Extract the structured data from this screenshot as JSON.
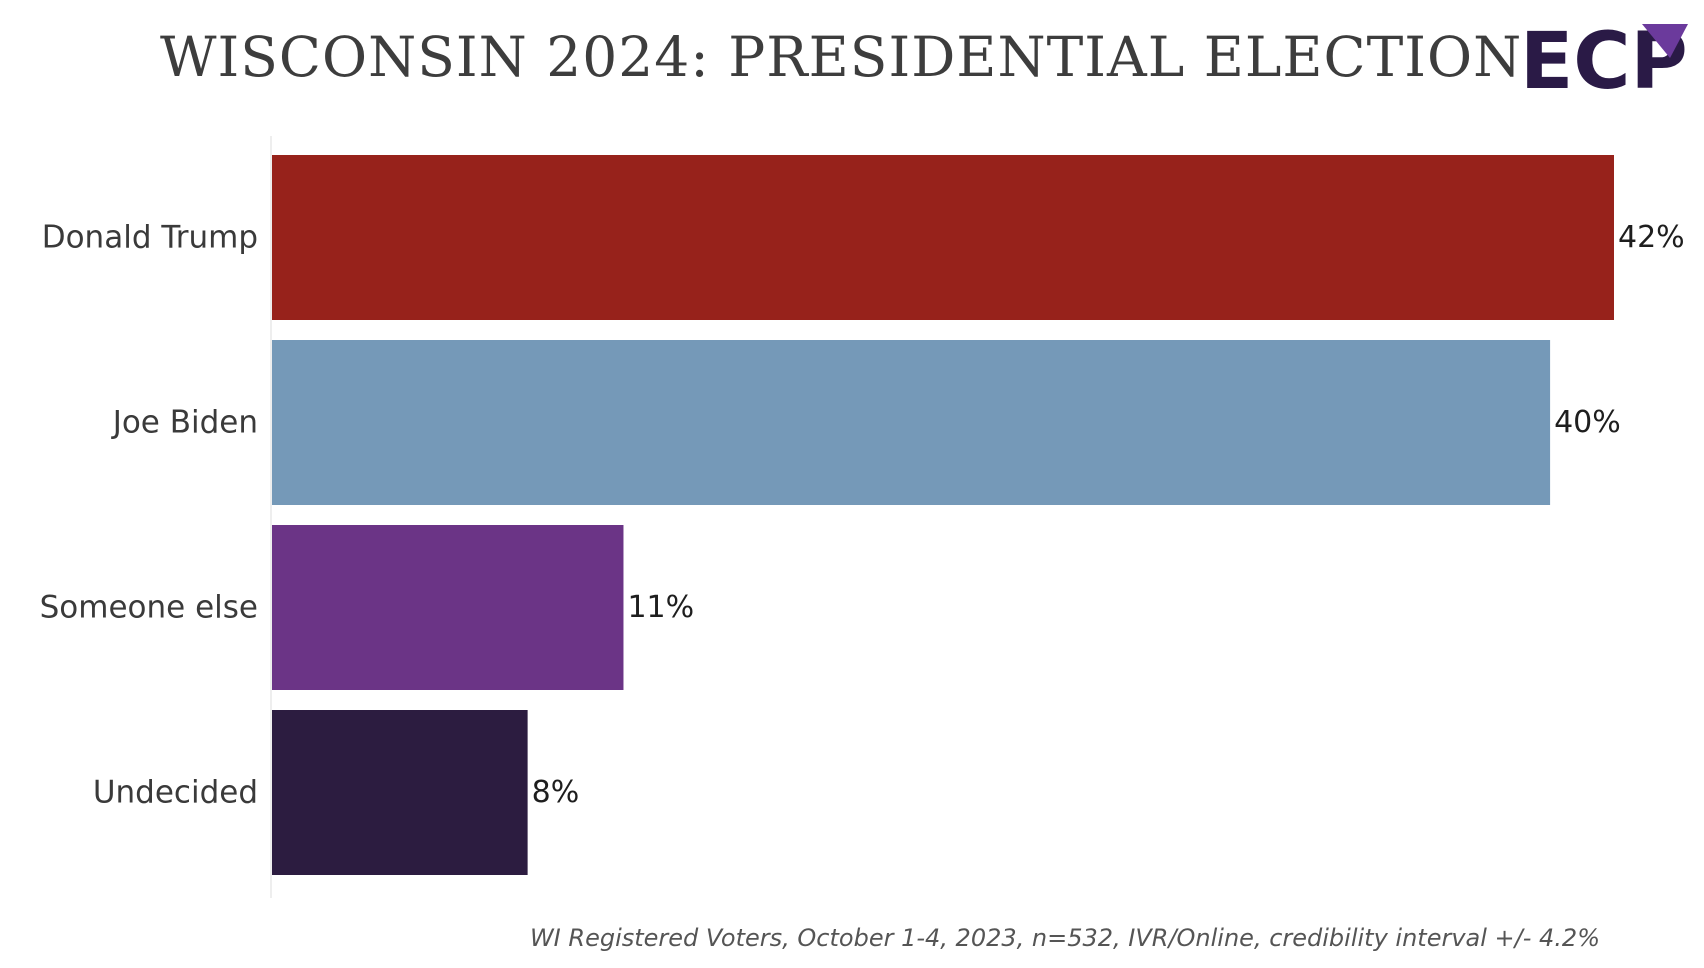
{
  "header": {
    "title": "WISCONSIN 2024: PRESIDENTIAL ELECTION",
    "logo_text": "ECP"
  },
  "colors": {
    "title_text": "#3d3d3d",
    "logo_dark": "#2a1a46",
    "logo_accent": "#6b3a9c"
  },
  "chart_data": {
    "type": "bar",
    "orientation": "horizontal",
    "categories": [
      "Donald Trump",
      "Joe Biden",
      "Someone else",
      "Undecided"
    ],
    "values": [
      42,
      40,
      11,
      8
    ],
    "value_labels": [
      "42%",
      "40%",
      "11%",
      "8%"
    ],
    "colors": [
      "#97221b",
      "#7599b8",
      "#6b3486",
      "#2c1c40"
    ],
    "xlim": [
      0,
      42
    ],
    "grid": false,
    "legend": "none"
  },
  "footnote": "WI Registered Voters, October 1-4, 2023, n=532, IVR/Online, credibility interval +/- 4.2%"
}
